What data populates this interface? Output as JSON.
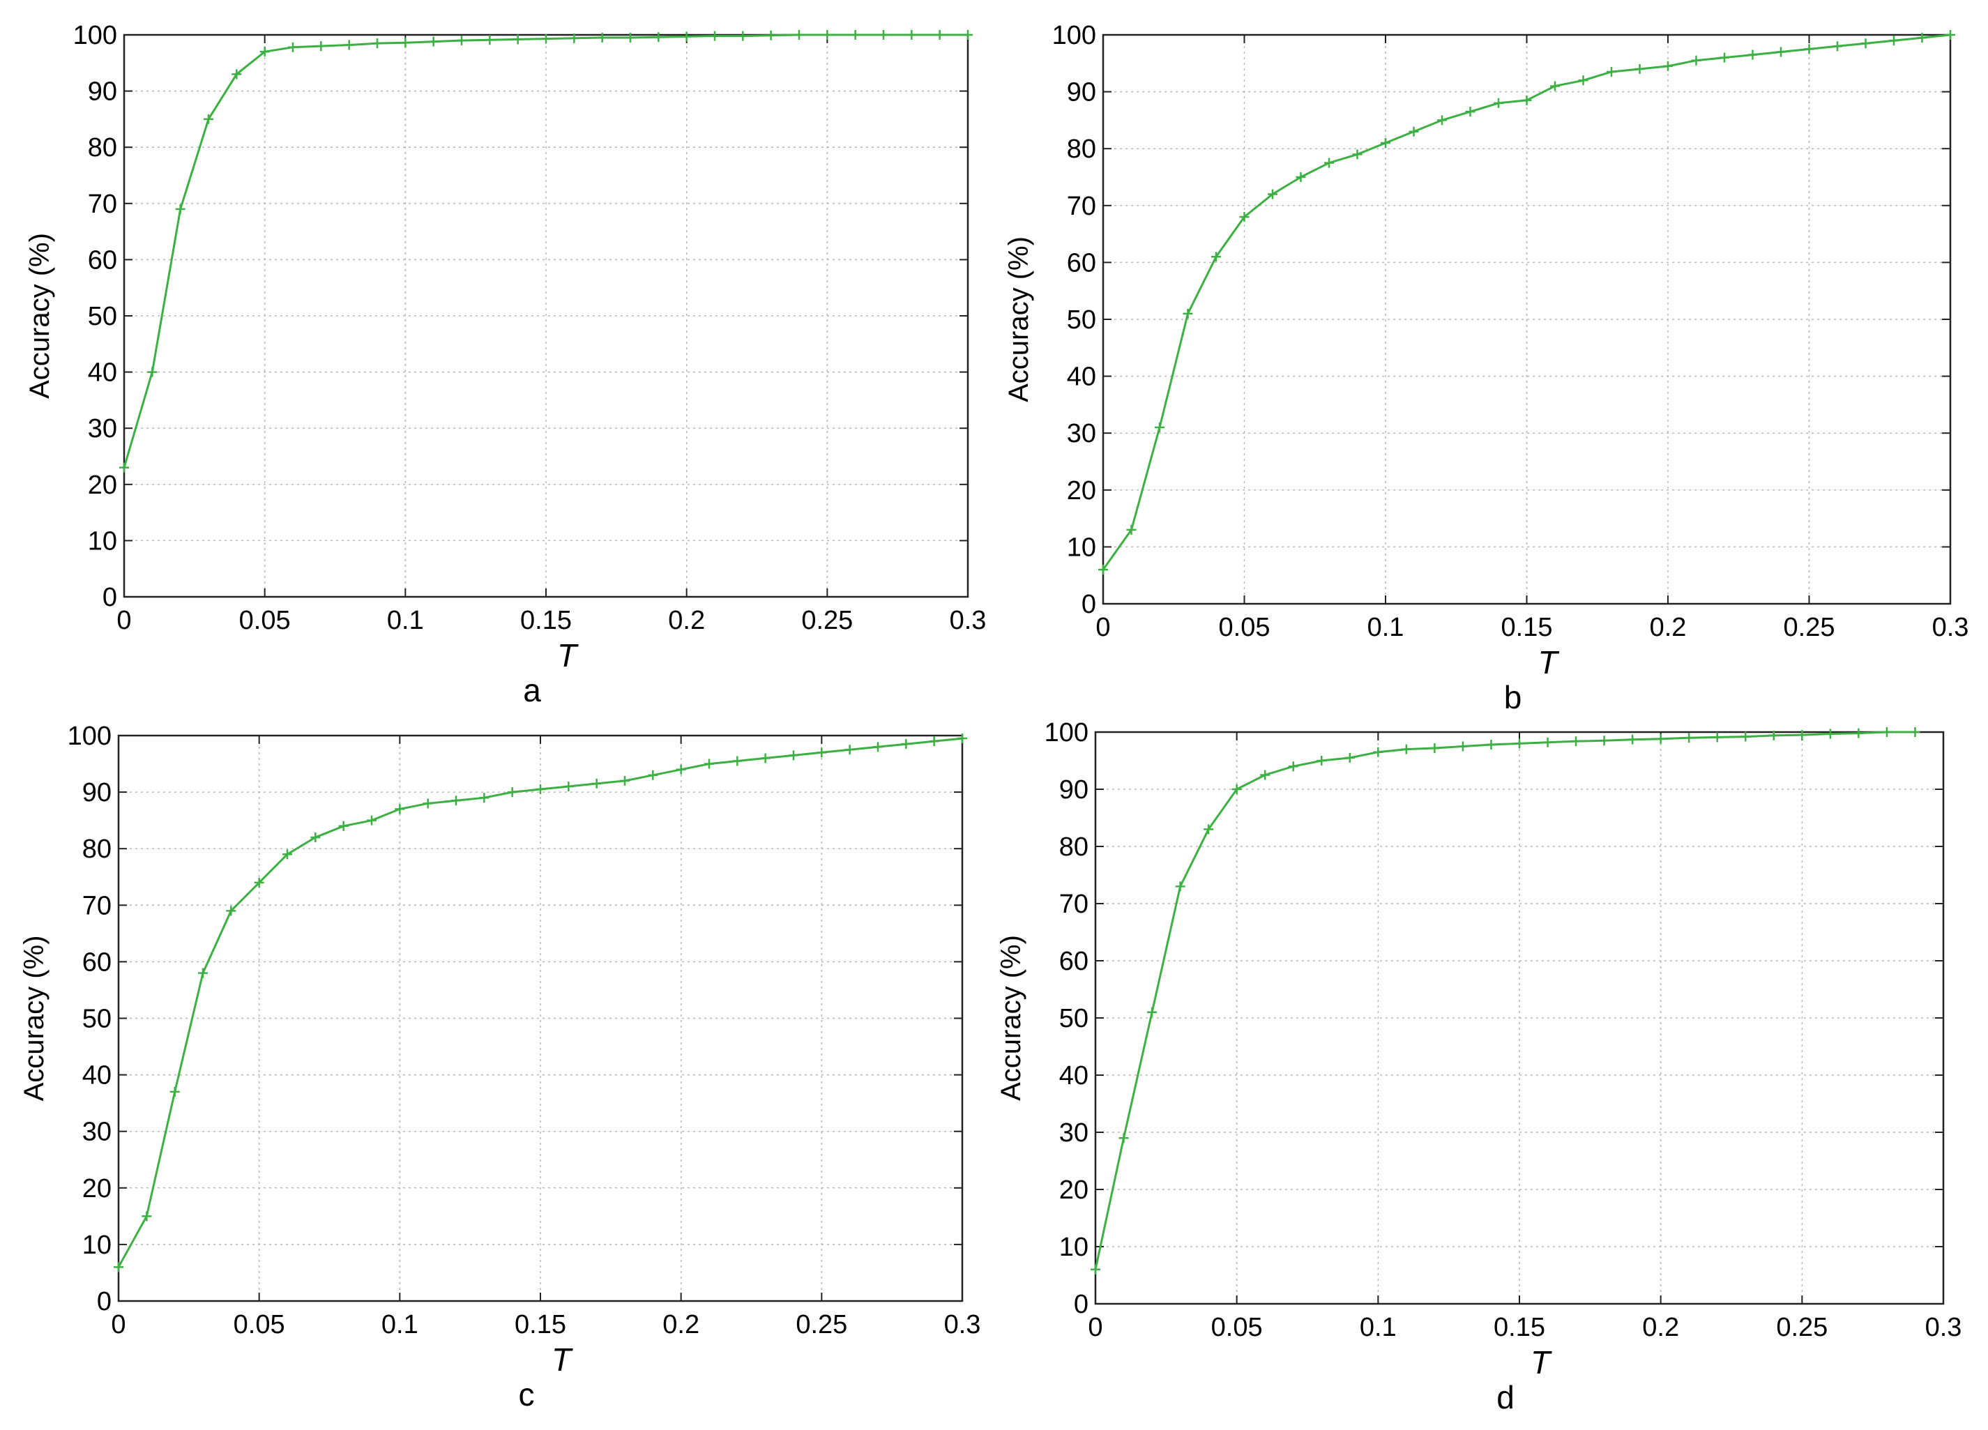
{
  "chart_data": [
    {
      "type": "line",
      "panel_label": "a",
      "xlabel": "T",
      "ylabel": "Accuracy (%)",
      "xlim": [
        0,
        0.3
      ],
      "ylim": [
        0,
        100
      ],
      "grid": true,
      "x_ticks": [
        0,
        0.05,
        0.1,
        0.15,
        0.2,
        0.25,
        0.3
      ],
      "x_tick_labels": [
        "0",
        "0.05",
        "0.1",
        "0.15",
        "0.2",
        "0.25",
        "0.3"
      ],
      "y_ticks": [
        0,
        10,
        20,
        30,
        40,
        50,
        60,
        70,
        80,
        90,
        100
      ],
      "y_tick_labels": [
        "0",
        "10",
        "20",
        "30",
        "40",
        "50",
        "60",
        "70",
        "80",
        "90",
        "100"
      ],
      "series": [
        {
          "color": "#3cb043",
          "marker": "+",
          "x": [
            0,
            0.01,
            0.02,
            0.03,
            0.04,
            0.05,
            0.06,
            0.07,
            0.08,
            0.09,
            0.1,
            0.11,
            0.12,
            0.13,
            0.14,
            0.15,
            0.16,
            0.17,
            0.18,
            0.19,
            0.2,
            0.21,
            0.22,
            0.23,
            0.24,
            0.25,
            0.26,
            0.27,
            0.28,
            0.29,
            0.3
          ],
          "y": [
            23,
            40,
            69,
            85,
            93,
            97,
            97.8,
            98,
            98.2,
            98.5,
            98.6,
            98.8,
            99,
            99.1,
            99.2,
            99.3,
            99.4,
            99.5,
            99.5,
            99.6,
            99.7,
            99.8,
            99.8,
            99.9,
            100,
            100,
            100,
            100,
            100,
            100,
            100
          ]
        }
      ]
    },
    {
      "type": "line",
      "panel_label": "b",
      "xlabel": "T",
      "ylabel": "Accuracy (%)",
      "xlim": [
        0,
        0.3
      ],
      "ylim": [
        0,
        100
      ],
      "grid": true,
      "x_ticks": [
        0,
        0.05,
        0.1,
        0.15,
        0.2,
        0.25,
        0.3
      ],
      "x_tick_labels": [
        "0",
        "0.05",
        "0.1",
        "0.15",
        "0.2",
        "0.25",
        "0.3"
      ],
      "y_ticks": [
        0,
        10,
        20,
        30,
        40,
        50,
        60,
        70,
        80,
        90,
        100
      ],
      "y_tick_labels": [
        "0",
        "10",
        "20",
        "30",
        "40",
        "50",
        "60",
        "70",
        "80",
        "90",
        "100"
      ],
      "series": [
        {
          "color": "#3cb043",
          "marker": "+",
          "x": [
            0,
            0.01,
            0.02,
            0.03,
            0.04,
            0.05,
            0.06,
            0.07,
            0.08,
            0.09,
            0.1,
            0.11,
            0.12,
            0.13,
            0.14,
            0.15,
            0.16,
            0.17,
            0.18,
            0.19,
            0.2,
            0.21,
            0.22,
            0.23,
            0.24,
            0.25,
            0.26,
            0.27,
            0.28,
            0.29,
            0.3
          ],
          "y": [
            6,
            13,
            31,
            51,
            61,
            68,
            72,
            75,
            77.5,
            79,
            81,
            83,
            85,
            86.5,
            88,
            88.5,
            91,
            92,
            93.5,
            94,
            94.5,
            95.5,
            96,
            96.5,
            97,
            97.5,
            98,
            98.5,
            99,
            99.5,
            100
          ]
        }
      ]
    },
    {
      "type": "line",
      "panel_label": "c",
      "xlabel": "T",
      "ylabel": "Accuracy (%)",
      "xlim": [
        0,
        0.3
      ],
      "ylim": [
        0,
        100
      ],
      "grid": true,
      "x_ticks": [
        0,
        0.05,
        0.1,
        0.15,
        0.2,
        0.25,
        0.3
      ],
      "x_tick_labels": [
        "0",
        "0.05",
        "0.1",
        "0.15",
        "0.2",
        "0.25",
        "0.3"
      ],
      "y_ticks": [
        0,
        10,
        20,
        30,
        40,
        50,
        60,
        70,
        80,
        90,
        100
      ],
      "y_tick_labels": [
        "0",
        "10",
        "20",
        "30",
        "40",
        "50",
        "60",
        "70",
        "80",
        "90",
        "100"
      ],
      "series": [
        {
          "color": "#3cb043",
          "marker": "+",
          "x": [
            0,
            0.01,
            0.02,
            0.03,
            0.04,
            0.05,
            0.06,
            0.07,
            0.08,
            0.09,
            0.1,
            0.11,
            0.12,
            0.13,
            0.14,
            0.15,
            0.16,
            0.17,
            0.18,
            0.19,
            0.2,
            0.21,
            0.22,
            0.23,
            0.24,
            0.25,
            0.26,
            0.27,
            0.28,
            0.29,
            0.3
          ],
          "y": [
            6,
            15,
            37,
            58,
            69,
            74,
            79,
            82,
            84,
            85,
            87,
            88,
            88.5,
            89,
            90,
            90.5,
            91,
            91.5,
            92,
            93,
            94,
            95,
            95.5,
            96,
            96.5,
            97,
            97.5,
            98,
            98.5,
            99,
            99.5
          ]
        }
      ]
    },
    {
      "type": "line",
      "panel_label": "d",
      "xlabel": "T",
      "ylabel": "Accuracy (%)",
      "xlim": [
        0,
        0.3
      ],
      "ylim": [
        0,
        100
      ],
      "grid": true,
      "x_ticks": [
        0,
        0.05,
        0.1,
        0.15,
        0.2,
        0.25,
        0.3
      ],
      "x_tick_labels": [
        "0",
        "0.05",
        "0.1",
        "0.15",
        "0.2",
        "0.25",
        "0.3"
      ],
      "y_ticks": [
        0,
        10,
        20,
        30,
        40,
        50,
        60,
        70,
        80,
        90,
        100
      ],
      "y_tick_labels": [
        "0",
        "10",
        "20",
        "30",
        "40",
        "50",
        "60",
        "70",
        "80",
        "90",
        "100"
      ],
      "series": [
        {
          "color": "#3cb043",
          "marker": "+",
          "x": [
            0,
            0.01,
            0.02,
            0.03,
            0.04,
            0.05,
            0.06,
            0.07,
            0.08,
            0.09,
            0.1,
            0.11,
            0.12,
            0.13,
            0.14,
            0.15,
            0.16,
            0.17,
            0.18,
            0.19,
            0.2,
            0.21,
            0.22,
            0.23,
            0.24,
            0.25,
            0.26,
            0.27,
            0.28,
            0.29
          ],
          "y": [
            6,
            29,
            51,
            73,
            83,
            90,
            92.5,
            94,
            95,
            95.5,
            96.5,
            97,
            97.2,
            97.5,
            97.8,
            98,
            98.2,
            98.4,
            98.5,
            98.7,
            98.8,
            99,
            99.1,
            99.2,
            99.4,
            99.5,
            99.7,
            99.8,
            100,
            100
          ]
        }
      ]
    }
  ]
}
